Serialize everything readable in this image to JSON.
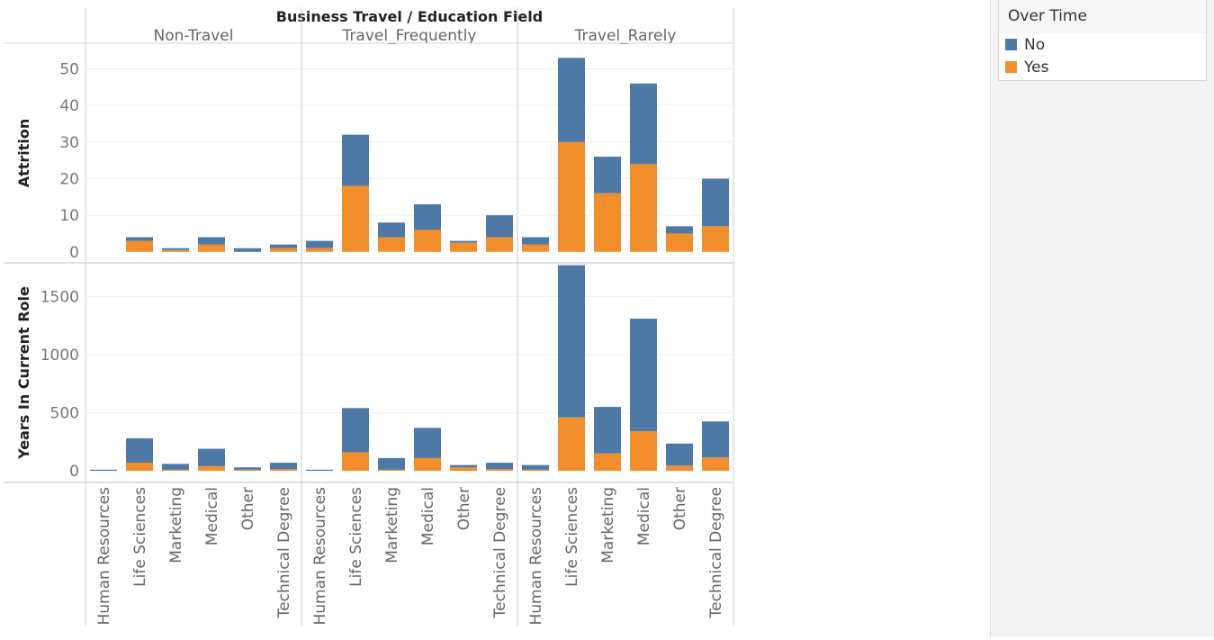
{
  "colors": {
    "no": "#4e79a7",
    "yes": "#f28e2b"
  },
  "legend": {
    "title": "Over Time",
    "items": [
      {
        "label": "No",
        "color": "#4e79a7"
      },
      {
        "label": "Yes",
        "color": "#f28e2b"
      }
    ]
  },
  "chart_data": {
    "type": "bar",
    "stacked": true,
    "header_title": "Business Travel  /  Education Field",
    "columns": [
      "Non-Travel",
      "Travel_Frequently",
      "Travel_Rarely"
    ],
    "categories": [
      "Human Resources",
      "Life Sciences",
      "Marketing",
      "Medical",
      "Other",
      "Technical Degree"
    ],
    "series_names": [
      "No",
      "Yes"
    ],
    "rows": [
      {
        "ylabel": "Attrition",
        "ylim": [
          -3,
          57
        ],
        "ticks": [
          0,
          10,
          20,
          30,
          40,
          50
        ],
        "panels": [
          {
            "column": "Non-Travel",
            "series": [
              {
                "name": "Yes",
                "values": [
                  0,
                  3,
                  0.5,
                  2,
                  0,
                  1
                ]
              },
              {
                "name": "No",
                "values": [
                  0,
                  1,
                  0.5,
                  2,
                  1,
                  1
                ]
              }
            ]
          },
          {
            "column": "Travel_Frequently",
            "series": [
              {
                "name": "Yes",
                "values": [
                  1,
                  18,
                  4,
                  6,
                  2.5,
                  4
                ]
              },
              {
                "name": "No",
                "values": [
                  2,
                  14,
                  4,
                  7,
                  0.5,
                  6
                ]
              }
            ]
          },
          {
            "column": "Travel_Rarely",
            "series": [
              {
                "name": "Yes",
                "values": [
                  2,
                  30,
                  16,
                  24,
                  5,
                  7
                ]
              },
              {
                "name": "No",
                "values": [
                  2,
                  23,
                  10,
                  22,
                  2,
                  13
                ]
              }
            ]
          }
        ]
      },
      {
        "ylabel": "Years In Current Role",
        "ylim": [
          -100,
          1790
        ],
        "ticks": [
          0,
          500,
          1000,
          1500
        ],
        "panels": [
          {
            "column": "Non-Travel",
            "series": [
              {
                "name": "Yes",
                "values": [
                  0,
                  70,
                  10,
                  40,
                  10,
                  15
                ]
              },
              {
                "name": "No",
                "values": [
                  10,
                  210,
                  50,
                  150,
                  20,
                  55
                ]
              }
            ]
          },
          {
            "column": "Travel_Frequently",
            "series": [
              {
                "name": "Yes",
                "values": [
                  0,
                  160,
                  10,
                  110,
                  30,
                  15
                ]
              },
              {
                "name": "No",
                "values": [
                  10,
                  380,
                  100,
                  260,
                  20,
                  55
                ]
              }
            ]
          },
          {
            "column": "Travel_Rarely",
            "series": [
              {
                "name": "Yes",
                "values": [
                  10,
                  460,
                  150,
                  340,
                  45,
                  115
                ]
              },
              {
                "name": "No",
                "values": [
                  40,
                  1310,
                  400,
                  970,
                  190,
                  310
                ]
              }
            ]
          }
        ]
      }
    ]
  }
}
